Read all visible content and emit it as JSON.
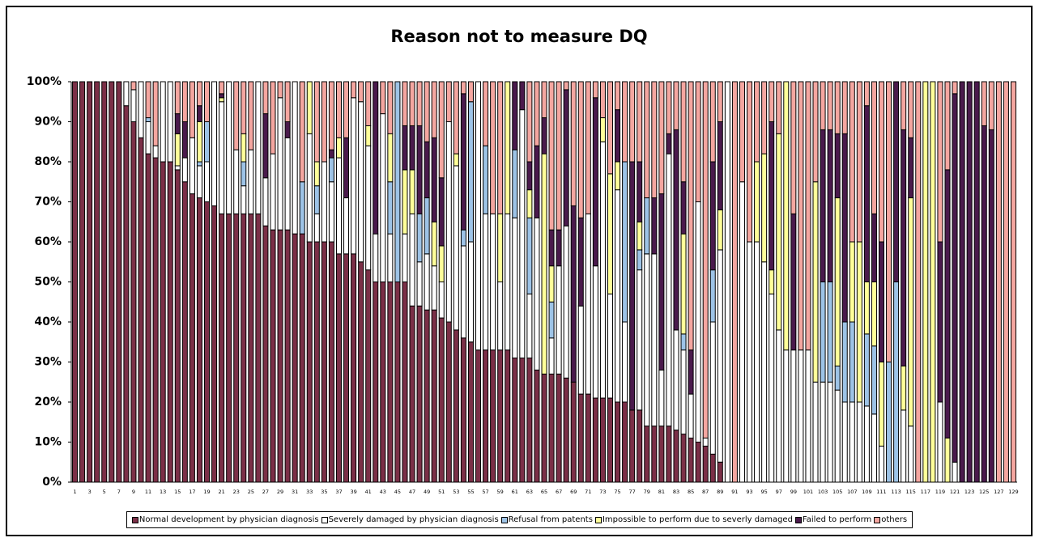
{
  "chart_data": {
    "type": "stacked_bar_percent",
    "title": "Reason not to measure DQ",
    "categories": [
      "1",
      null,
      "3",
      null,
      "5",
      null,
      "7",
      null,
      "9",
      null,
      "11",
      null,
      "13",
      null,
      "15",
      null,
      "17",
      null,
      "19",
      null,
      "21",
      null,
      "23",
      null,
      "25",
      null,
      "27",
      null,
      "29",
      null,
      "31",
      null,
      "33",
      null,
      "35",
      null,
      "37",
      null,
      "39",
      null,
      "41",
      null,
      "43",
      null,
      "45",
      null,
      "47",
      null,
      "49",
      null,
      "51",
      null,
      "53",
      null,
      "55",
      null,
      "57",
      null,
      "59",
      null,
      "61",
      null,
      "63",
      null,
      "65",
      null,
      "67",
      null,
      "69",
      null,
      "71",
      null,
      "73",
      null,
      "75",
      null,
      "77",
      null,
      "79",
      null,
      "81",
      null,
      "83",
      null,
      "85",
      null,
      "87",
      null,
      "89",
      null,
      "91",
      null,
      "93",
      null,
      "95",
      null,
      "97",
      null,
      "99",
      null,
      "101",
      null,
      "103",
      null,
      "105",
      null,
      "107",
      null,
      "109",
      null,
      "111",
      null,
      "113",
      null,
      "115",
      null,
      "117",
      null,
      "119",
      null,
      "121",
      null,
      "123",
      null,
      "125",
      null,
      "127",
      null,
      "129"
    ],
    "ylim": [
      0,
      100
    ],
    "yticks": [
      {
        "value": 0,
        "label": "0%"
      },
      {
        "value": 10,
        "label": "10%"
      },
      {
        "value": 20,
        "label": "20%"
      },
      {
        "value": 30,
        "label": "30%"
      },
      {
        "value": 40,
        "label": "40%"
      },
      {
        "value": 50,
        "label": "50%"
      },
      {
        "value": 60,
        "label": "60%"
      },
      {
        "value": 70,
        "label": "70%"
      },
      {
        "value": 80,
        "label": "80%"
      },
      {
        "value": 90,
        "label": "90%"
      },
      {
        "value": 100,
        "label": "100%"
      }
    ],
    "series": [
      {
        "name": "Normal development by physician diagnosis",
        "color": "#7b2f47",
        "values": [
          100,
          100,
          100,
          100,
          100,
          100,
          100,
          94,
          90,
          86,
          82,
          81,
          80,
          80,
          78,
          75,
          72,
          71,
          70,
          69,
          67,
          67,
          67,
          67,
          67,
          67,
          64,
          63,
          63,
          63,
          62,
          62,
          60,
          60,
          60,
          60,
          57,
          57,
          57,
          55,
          53,
          50,
          50,
          50,
          50,
          50,
          44,
          44,
          43,
          43,
          41,
          40,
          38,
          36,
          35,
          33,
          33,
          33,
          33,
          33,
          31,
          31,
          31,
          28,
          27,
          27,
          27,
          26,
          25,
          22,
          22,
          21,
          21,
          21,
          20,
          20,
          18,
          18,
          14,
          14,
          14,
          14,
          13,
          12,
          11,
          10,
          9,
          7,
          5,
          0,
          0,
          0,
          0,
          0,
          0,
          0,
          0,
          0,
          0,
          0,
          0,
          0,
          0,
          0,
          0,
          0,
          0,
          0,
          0,
          0,
          0,
          0,
          0,
          0,
          0,
          0,
          0,
          0,
          0,
          0,
          0,
          0,
          0,
          0,
          0,
          0,
          0,
          0,
          0
        ]
      },
      {
        "name": "Severely damaged by physician diagnosis",
        "color": "#ffffff",
        "values": [
          0,
          0,
          0,
          0,
          0,
          0,
          0,
          6,
          8,
          14,
          8,
          3,
          20,
          20,
          1,
          6,
          14,
          8,
          10,
          31,
          28,
          33,
          16,
          7,
          16,
          33,
          12,
          19,
          33,
          23,
          38,
          0,
          27,
          7,
          20,
          15,
          24,
          14,
          39,
          40,
          31,
          12,
          42,
          12,
          0,
          12,
          23,
          11,
          14,
          11,
          9,
          50,
          41,
          23,
          25,
          67,
          34,
          34,
          17,
          34,
          35,
          62,
          16,
          38,
          0,
          9,
          27,
          38,
          0,
          22,
          45,
          33,
          64,
          26,
          53,
          20,
          0,
          35,
          43,
          43,
          14,
          68,
          25,
          21,
          11,
          60,
          2,
          33,
          53,
          100,
          0,
          75,
          60,
          60,
          55,
          47,
          38,
          33,
          33,
          33,
          33,
          25,
          25,
          25,
          23,
          20,
          20,
          20,
          19,
          17,
          9,
          0,
          0,
          18,
          14,
          0,
          0,
          0,
          20,
          0,
          5,
          0,
          0,
          0,
          0,
          0,
          0,
          0,
          0
        ]
      },
      {
        "name": "Refusal from patents",
        "color": "#9dc3e6",
        "values": [
          0,
          0,
          0,
          0,
          0,
          0,
          0,
          0,
          0,
          0,
          1,
          0,
          0,
          0,
          0,
          0,
          0,
          1,
          10,
          0,
          0,
          0,
          0,
          6,
          0,
          0,
          0,
          0,
          0,
          0,
          0,
          13,
          0,
          7,
          0,
          6,
          0,
          0,
          0,
          0,
          0,
          0,
          0,
          13,
          50,
          0,
          0,
          12,
          14,
          0,
          0,
          0,
          0,
          4,
          35,
          0,
          17,
          0,
          0,
          0,
          17,
          0,
          19,
          0,
          0,
          9,
          0,
          0,
          0,
          0,
          0,
          0,
          0,
          0,
          0,
          40,
          0,
          5,
          14,
          0,
          0,
          0,
          0,
          4,
          0,
          0,
          0,
          13,
          0,
          0,
          0,
          0,
          0,
          0,
          0,
          0,
          0,
          0,
          0,
          0,
          0,
          0,
          25,
          25,
          6,
          20,
          20,
          0,
          18,
          17,
          0,
          30,
          50,
          0,
          0,
          0,
          0,
          0,
          0,
          0,
          0,
          0,
          0,
          0,
          0,
          0,
          0,
          0,
          0
        ]
      },
      {
        "name": "Impossible to perform due to severly damaged",
        "color": "#ffff99",
        "values": [
          0,
          0,
          0,
          0,
          0,
          0,
          0,
          0,
          0,
          0,
          0,
          0,
          0,
          0,
          8,
          0,
          0,
          10,
          0,
          0,
          1,
          0,
          0,
          7,
          0,
          0,
          0,
          0,
          0,
          0,
          0,
          0,
          13,
          6,
          0,
          0,
          5,
          0,
          0,
          0,
          5,
          0,
          0,
          12,
          0,
          16,
          11,
          0,
          0,
          11,
          9,
          0,
          3,
          0,
          0,
          0,
          0,
          0,
          17,
          33,
          0,
          0,
          7,
          0,
          55,
          9,
          0,
          0,
          0,
          0,
          0,
          0,
          6,
          30,
          7,
          0,
          0,
          7,
          0,
          0,
          0,
          0,
          0,
          25,
          0,
          0,
          0,
          0,
          10,
          0,
          0,
          0,
          0,
          20,
          27,
          6,
          49,
          67,
          0,
          0,
          0,
          50,
          0,
          0,
          42,
          0,
          20,
          40,
          13,
          16,
          21,
          0,
          0,
          11,
          57,
          0,
          100,
          100,
          0,
          11,
          0,
          0,
          0,
          0,
          0,
          0,
          0,
          0,
          0
        ]
      },
      {
        "name": "Failed to perform",
        "color": "#4a1a4c",
        "values": [
          0,
          0,
          0,
          0,
          0,
          0,
          0,
          0,
          0,
          0,
          0,
          0,
          0,
          0,
          5,
          9,
          0,
          4,
          0,
          0,
          1,
          0,
          0,
          0,
          0,
          0,
          16,
          0,
          0,
          4,
          0,
          0,
          0,
          0,
          0,
          2,
          0,
          15,
          0,
          0,
          0,
          38,
          0,
          0,
          0,
          11,
          11,
          22,
          14,
          21,
          17,
          0,
          0,
          34,
          0,
          0,
          0,
          0,
          0,
          0,
          17,
          7,
          7,
          18,
          9,
          9,
          9,
          34,
          44,
          22,
          0,
          42,
          0,
          0,
          13,
          0,
          62,
          15,
          0,
          14,
          44,
          5,
          50,
          13,
          11,
          0,
          0,
          27,
          22,
          0,
          0,
          0,
          0,
          0,
          0,
          37,
          0,
          0,
          34,
          0,
          0,
          0,
          38,
          38,
          16,
          47,
          0,
          0,
          44,
          17,
          30,
          0,
          50,
          59,
          15,
          0,
          0,
          0,
          40,
          67,
          92,
          100,
          100,
          100,
          89,
          88,
          0,
          0,
          0
        ]
      },
      {
        "name": "others",
        "color": "#f4a6a0",
        "values": [
          0,
          0,
          0,
          0,
          0,
          0,
          0,
          0,
          2,
          0,
          9,
          16,
          0,
          0,
          8,
          10,
          14,
          6,
          10,
          0,
          3,
          0,
          17,
          13,
          17,
          0,
          8,
          18,
          4,
          10,
          0,
          25,
          0,
          20,
          20,
          17,
          14,
          14,
          4,
          5,
          11,
          0,
          8,
          13,
          0,
          11,
          11,
          11,
          15,
          14,
          24,
          10,
          18,
          3,
          5,
          0,
          16,
          33,
          33,
          0,
          0,
          0,
          20,
          16,
          9,
          37,
          37,
          2,
          31,
          34,
          33,
          4,
          9,
          23,
          7,
          20,
          20,
          20,
          29,
          29,
          28,
          13,
          12,
          25,
          67,
          30,
          89,
          20,
          10,
          0,
          100,
          25,
          40,
          20,
          18,
          10,
          13,
          0,
          33,
          67,
          67,
          25,
          12,
          12,
          13,
          13,
          40,
          40,
          6,
          33,
          40,
          70,
          0,
          12,
          14,
          100,
          0,
          0,
          40,
          22,
          3,
          0,
          0,
          0,
          11,
          12,
          100,
          100,
          100
        ]
      }
    ]
  }
}
